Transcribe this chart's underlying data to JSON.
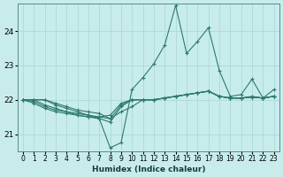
{
  "xlabel": "Humidex (Indice chaleur)",
  "ylabel": "",
  "bg_color": "#c8ecec",
  "grid_color": "#a8d4d4",
  "line_color": "#2d7a6a",
  "xlim": [
    -0.5,
    23.5
  ],
  "ylim": [
    20.5,
    24.8
  ],
  "yticks": [
    21,
    22,
    23,
    24
  ],
  "xticks": [
    0,
    1,
    2,
    3,
    4,
    5,
    6,
    7,
    8,
    9,
    10,
    11,
    12,
    13,
    14,
    15,
    16,
    17,
    18,
    19,
    20,
    21,
    22,
    23
  ],
  "series": [
    {
      "x": [
        0,
        1,
        2,
        3,
        4,
        5,
        6,
        7,
        8,
        9,
        10,
        11,
        12,
        13,
        14,
        15,
        16,
        17,
        18,
        19,
        20,
        21,
        22,
        23
      ],
      "y": [
        22.0,
        22.0,
        22.0,
        21.85,
        21.75,
        21.65,
        21.55,
        21.45,
        20.6,
        20.75,
        22.3,
        22.65,
        23.05,
        23.6,
        24.75,
        23.35,
        23.7,
        24.1,
        22.85,
        22.1,
        22.15,
        22.6,
        22.05,
        22.3
      ]
    },
    {
      "x": [
        0,
        1,
        2,
        3,
        4,
        5,
        6,
        7,
        8,
        9,
        10,
        11,
        12,
        13,
        14,
        15,
        16,
        17,
        18,
        19,
        20,
        21,
        22,
        23
      ],
      "y": [
        22.0,
        21.9,
        21.75,
        21.65,
        21.6,
        21.55,
        21.5,
        21.5,
        21.55,
        21.9,
        22.0,
        22.0,
        22.0,
        22.05,
        22.1,
        22.15,
        22.2,
        22.25,
        22.1,
        22.05,
        22.05,
        22.1,
        22.05,
        22.1
      ]
    },
    {
      "x": [
        0,
        1,
        2,
        3,
        4,
        5,
        6,
        7,
        8,
        9,
        10,
        11,
        12,
        13,
        14,
        15,
        16,
        17,
        18,
        19,
        20,
        21,
        22,
        23
      ],
      "y": [
        22.0,
        21.95,
        21.8,
        21.7,
        21.65,
        21.6,
        21.55,
        21.5,
        21.45,
        21.85,
        22.0,
        22.0,
        22.0,
        22.05,
        22.1,
        22.15,
        22.2,
        22.25,
        22.1,
        22.05,
        22.05,
        22.08,
        22.05,
        22.1
      ]
    },
    {
      "x": [
        0,
        1,
        2,
        3,
        4,
        5,
        6,
        7,
        8,
        9,
        10,
        11,
        12,
        13,
        14,
        15,
        16,
        17,
        18,
        19,
        20,
        21,
        22,
        23
      ],
      "y": [
        22.0,
        22.0,
        21.85,
        21.75,
        21.65,
        21.55,
        21.5,
        21.45,
        21.35,
        21.8,
        22.0,
        22.0,
        22.0,
        22.05,
        22.1,
        22.15,
        22.2,
        22.25,
        22.1,
        22.05,
        22.05,
        22.08,
        22.05,
        22.1
      ]
    },
    {
      "x": [
        0,
        1,
        2,
        3,
        4,
        5,
        6,
        7,
        8,
        9,
        10,
        11,
        12,
        13,
        14,
        15,
        16,
        17,
        18,
        19,
        20,
        21,
        22,
        23
      ],
      "y": [
        22.0,
        22.0,
        22.0,
        21.9,
        21.8,
        21.7,
        21.65,
        21.6,
        21.45,
        21.65,
        21.8,
        22.0,
        22.0,
        22.05,
        22.1,
        22.15,
        22.2,
        22.25,
        22.1,
        22.05,
        22.05,
        22.08,
        22.05,
        22.1
      ]
    }
  ]
}
